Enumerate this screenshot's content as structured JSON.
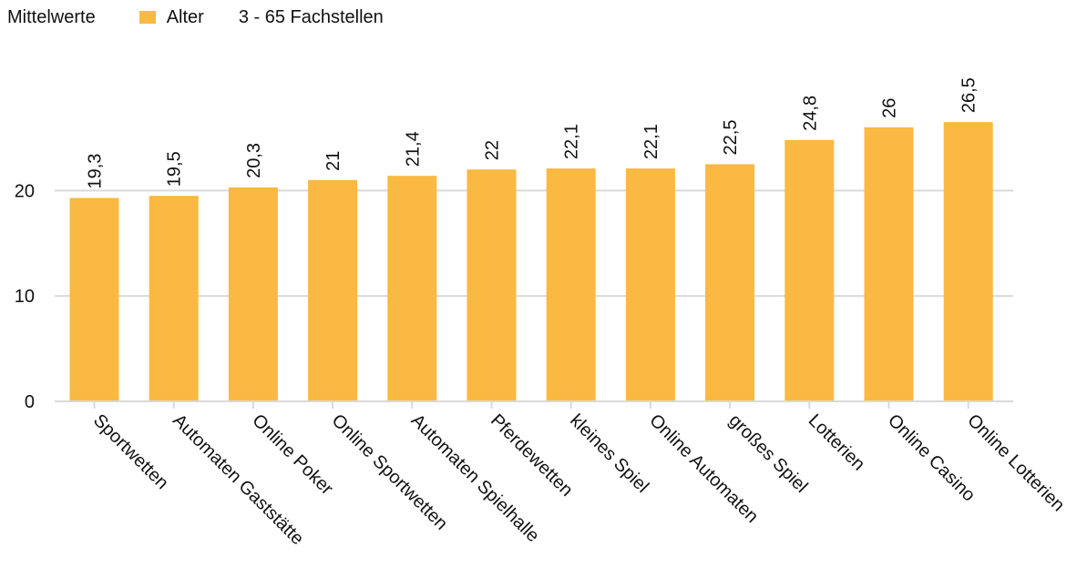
{
  "legend": {
    "label": "Mittelwerte",
    "series_name": "Alter",
    "note": "3 - 65 Fachstellen"
  },
  "chart_data": {
    "type": "bar",
    "categories": [
      "Sportwetten",
      "Automaten Gaststätte",
      "Online Poker",
      "Online Sportwetten",
      "Automaten Spielhalle",
      "Pferdewetten",
      "kleines Spiel",
      "Online Automaten",
      "großes Spiel",
      "Lotterien",
      "Online Casino",
      "Online Lotterien"
    ],
    "series": [
      {
        "name": "Alter",
        "values": [
          19.3,
          19.5,
          20.3,
          21,
          21.4,
          22,
          22.1,
          22.1,
          22.5,
          24.8,
          26,
          26.5
        ],
        "color": "#F9B942"
      }
    ],
    "value_labels": [
      "19,3",
      "19,5",
      "20,3",
      "21",
      "21,4",
      "22",
      "22,1",
      "22,1",
      "22,5",
      "24,8",
      "26",
      "26,5"
    ],
    "ylim": [
      0,
      30
    ],
    "yticks": [
      0,
      10,
      20
    ],
    "grid": true,
    "gridColor": "#d9d9d9",
    "legend_position": "top-left"
  }
}
